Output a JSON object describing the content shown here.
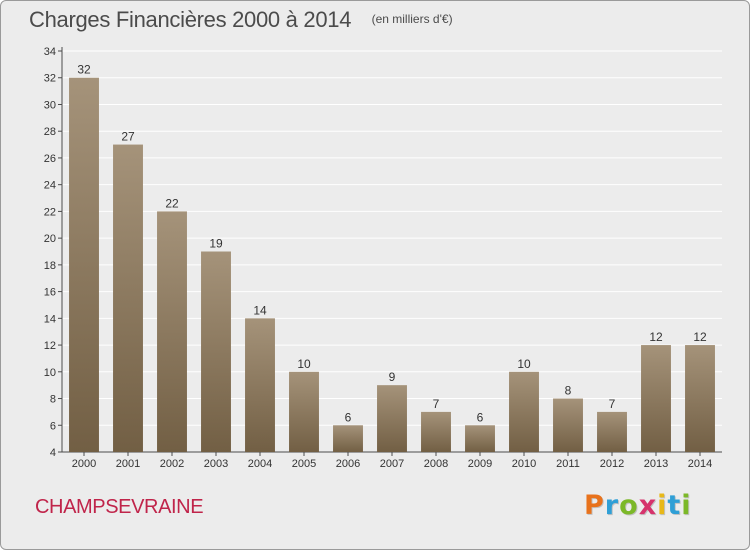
{
  "title": "Charges Financières 2000 à 2014",
  "subtitle": "(en milliers d'€)",
  "commune": "CHAMPSEVRAINE",
  "logo": {
    "text": "Proxiti",
    "letter_colors": [
      "#e8721c",
      "#2f9fd6",
      "#7cb828",
      "#d6336c",
      "#e8b818",
      "#2f9fd6",
      "#7cb828"
    ]
  },
  "chart_data": {
    "type": "bar",
    "categories": [
      "2000",
      "2001",
      "2002",
      "2003",
      "2004",
      "2005",
      "2006",
      "2007",
      "2008",
      "2009",
      "2010",
      "2011",
      "2012",
      "2013",
      "2014"
    ],
    "values": [
      32,
      27,
      22,
      19,
      14,
      10,
      6,
      9,
      7,
      6,
      10,
      8,
      7,
      12,
      12
    ],
    "data_labels": [
      "32",
      "27",
      "22",
      "19",
      "14",
      "10",
      "6",
      "9",
      "7",
      "6",
      "10",
      "8",
      "7",
      "12",
      "12"
    ],
    "yticks": [
      4,
      6,
      8,
      10,
      12,
      14,
      16,
      18,
      20,
      22,
      24,
      26,
      28,
      30,
      32,
      34
    ],
    "ylim": [
      4,
      34
    ],
    "grid": true,
    "legend": "none",
    "bar_color_top": "#a5937a",
    "bar_color_bottom": "#725f44",
    "background": "#ececec"
  }
}
